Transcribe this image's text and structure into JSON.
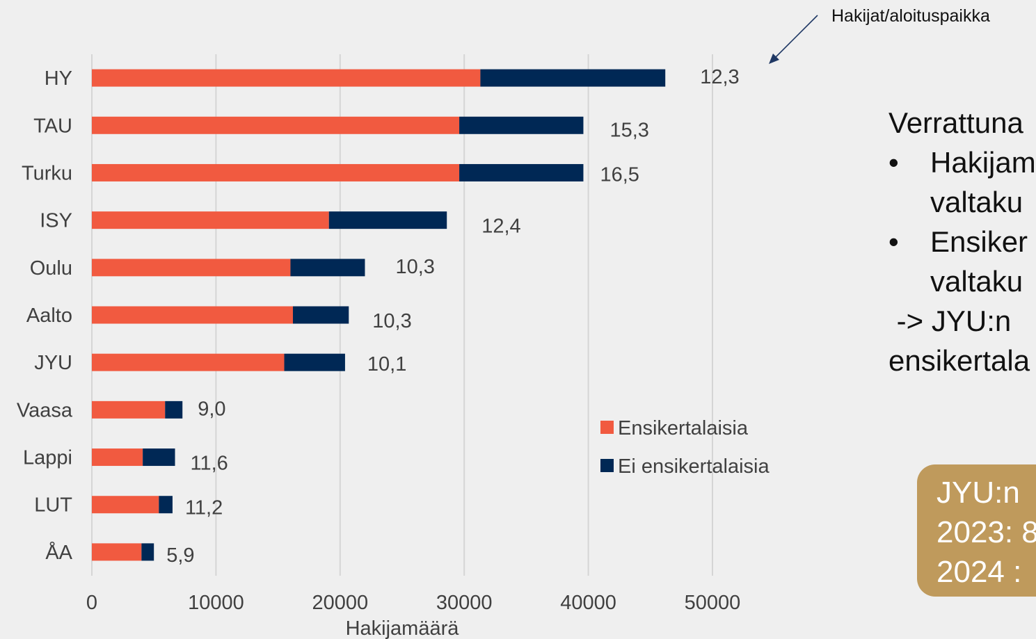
{
  "chart_data": {
    "type": "bar",
    "orientation": "horizontal",
    "stacked": true,
    "categories": [
      "HY",
      "TAU",
      "Turku",
      "ISY",
      "Oulu",
      "Aalto",
      "JYU",
      "Vaasa",
      "Lappi",
      "LUT",
      "ÅA"
    ],
    "series": [
      {
        "name": "Ensikertalaisia",
        "color": "#f15a40",
        "values": [
          31300,
          29600,
          29600,
          19100,
          16000,
          16200,
          15500,
          5900,
          4100,
          5400,
          4000
        ]
      },
      {
        "name": "Ei ensikertalaisia",
        "color": "#002855",
        "values": [
          14900,
          10000,
          10000,
          9500,
          6000,
          4500,
          4900,
          1400,
          2600,
          1100,
          1000
        ]
      }
    ],
    "data_labels": [
      "12,3",
      "15,3",
      "16,5",
      "12,4",
      "10,3",
      "10,3",
      "10,1",
      "9,0",
      "11,6",
      "11,2",
      "5,9"
    ],
    "xticks": [
      "0",
      "10000",
      "20000",
      "30000",
      "40000",
      "50000"
    ],
    "xlim": [
      0,
      50000
    ],
    "xlabel": "Hakijamäärä",
    "ylabel": "",
    "grid": "vertical",
    "legend_position": "right",
    "annotation": "Hakijat/aloituspaikka"
  },
  "side_panel": {
    "heading": "Verrattuna",
    "bullet_char": "•",
    "bullet1_line1": "Hakijam",
    "bullet1_line2": "valtaku",
    "bullet2_line1": "Ensiker",
    "bullet2_line2": "valtaku",
    "conclusion_line1": " -> JYU:n",
    "conclusion_line2": "ensikertala"
  },
  "info_box": {
    "line1": "JYU:n",
    "line2": "2023: 8",
    "line3": "2024 :"
  }
}
